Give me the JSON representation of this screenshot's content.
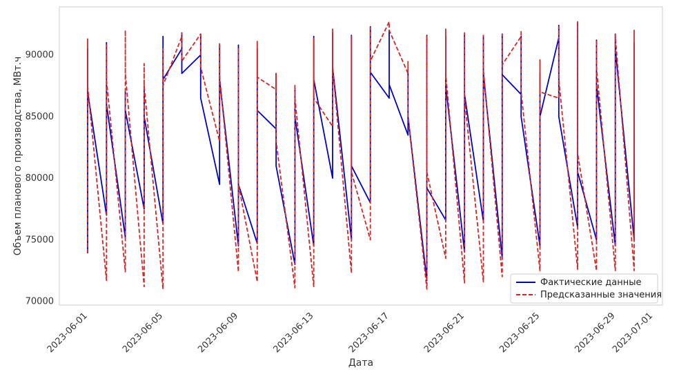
{
  "chart_data": {
    "type": "line",
    "title": "",
    "xlabel": "Дата",
    "ylabel": "Объем планового производства, МВт.ч",
    "x_ticks": [
      "2023-06-01",
      "2023-06-05",
      "2023-06-09",
      "2023-06-13",
      "2023-06-17",
      "2023-06-21",
      "2023-06-25",
      "2023-06-29",
      "2023-07-01"
    ],
    "y_ticks": [
      70000,
      75000,
      80000,
      85000,
      90000
    ],
    "xlim": [
      "2023-05-30T12:00",
      "2023-07-01T12:00"
    ],
    "ylim": [
      69700,
      93900
    ],
    "grid": false,
    "legend_position": "bottom-right",
    "series": [
      {
        "name": "Фактические данные",
        "color": "#0000cc",
        "style": "solid",
        "points": [
          [
            "2023-06-01T00:00",
            73900
          ],
          [
            "2023-06-01T00:00",
            90500
          ],
          [
            "2023-06-01T00:00",
            87000
          ],
          [
            "2023-06-02T00:00",
            77000
          ],
          [
            "2023-06-02T00:00",
            91000
          ],
          [
            "2023-06-02T00:00",
            86000
          ],
          [
            "2023-06-03T00:00",
            75200
          ],
          [
            "2023-06-03T00:00",
            87000
          ],
          [
            "2023-06-03T00:00",
            85500
          ],
          [
            "2023-06-04T00:00",
            77500
          ],
          [
            "2023-06-04T00:00",
            87500
          ],
          [
            "2023-06-04T00:00",
            85000
          ],
          [
            "2023-06-05T00:00",
            76300
          ],
          [
            "2023-06-05T00:00",
            91500
          ],
          [
            "2023-06-05T00:00",
            88000
          ],
          [
            "2023-06-06T00:00",
            90500
          ],
          [
            "2023-06-06T00:00",
            91800
          ],
          [
            "2023-06-06T00:00",
            88500
          ],
          [
            "2023-06-07T00:00",
            90000
          ],
          [
            "2023-06-07T00:00",
            91700
          ],
          [
            "2023-06-07T00:00",
            86500
          ],
          [
            "2023-06-08T00:00",
            79500
          ],
          [
            "2023-06-08T00:00",
            90800
          ],
          [
            "2023-06-08T00:00",
            88000
          ],
          [
            "2023-06-09T00:00",
            74500
          ],
          [
            "2023-06-09T00:00",
            90800
          ],
          [
            "2023-06-09T00:00",
            79500
          ],
          [
            "2023-06-10T00:00",
            74700
          ],
          [
            "2023-06-10T00:00",
            90500
          ],
          [
            "2023-06-10T00:00",
            85500
          ],
          [
            "2023-06-11T00:00",
            84000
          ],
          [
            "2023-06-11T00:00",
            88500
          ],
          [
            "2023-06-11T00:00",
            81000
          ],
          [
            "2023-06-12T00:00",
            73000
          ],
          [
            "2023-06-12T00:00",
            87300
          ],
          [
            "2023-06-12T00:00",
            85000
          ],
          [
            "2023-06-13T00:00",
            74500
          ],
          [
            "2023-06-13T00:00",
            91500
          ],
          [
            "2023-06-13T00:00",
            88000
          ],
          [
            "2023-06-14T00:00",
            80000
          ],
          [
            "2023-06-14T00:00",
            91800
          ],
          [
            "2023-06-14T00:00",
            89000
          ],
          [
            "2023-06-15T00:00",
            75000
          ],
          [
            "2023-06-15T00:00",
            91600
          ],
          [
            "2023-06-15T00:00",
            81000
          ],
          [
            "2023-06-16T00:00",
            78000
          ],
          [
            "2023-06-16T00:00",
            92300
          ],
          [
            "2023-06-16T00:00",
            88600
          ],
          [
            "2023-06-17T00:00",
            86500
          ],
          [
            "2023-06-17T00:00",
            92000
          ],
          [
            "2023-06-17T00:00",
            87600
          ],
          [
            "2023-06-18T00:00",
            83500
          ],
          [
            "2023-06-18T00:00",
            88500
          ],
          [
            "2023-06-18T00:00",
            85000
          ],
          [
            "2023-06-19T00:00",
            71700
          ],
          [
            "2023-06-19T00:00",
            91600
          ],
          [
            "2023-06-19T00:00",
            79200
          ],
          [
            "2023-06-20T00:00",
            76600
          ],
          [
            "2023-06-20T00:00",
            91500
          ],
          [
            "2023-06-20T00:00",
            87500
          ],
          [
            "2023-06-21T00:00",
            74000
          ],
          [
            "2023-06-21T00:00",
            91700
          ],
          [
            "2023-06-21T00:00",
            86800
          ],
          [
            "2023-06-22T00:00",
            76500
          ],
          [
            "2023-06-22T00:00",
            91500
          ],
          [
            "2023-06-22T00:00",
            88500
          ],
          [
            "2023-06-23T00:00",
            73500
          ],
          [
            "2023-06-23T00:00",
            91700
          ],
          [
            "2023-06-23T00:00",
            88400
          ],
          [
            "2023-06-24T00:00",
            86800
          ],
          [
            "2023-06-24T00:00",
            91500
          ],
          [
            "2023-06-24T00:00",
            85000
          ],
          [
            "2023-06-25T00:00",
            74500
          ],
          [
            "2023-06-25T00:00",
            88500
          ],
          [
            "2023-06-25T00:00",
            85000
          ],
          [
            "2023-06-26T00:00",
            91400
          ],
          [
            "2023-06-26T00:00",
            92400
          ],
          [
            "2023-06-26T00:00",
            85000
          ],
          [
            "2023-06-27T00:00",
            76000
          ],
          [
            "2023-06-27T00:00",
            92600
          ],
          [
            "2023-06-27T00:00",
            80500
          ],
          [
            "2023-06-28T00:00",
            75000
          ],
          [
            "2023-06-28T00:00",
            91200
          ],
          [
            "2023-06-28T00:00",
            87600
          ],
          [
            "2023-06-29T00:00",
            74500
          ],
          [
            "2023-06-29T00:00",
            91700
          ],
          [
            "2023-06-29T00:00",
            90500
          ],
          [
            "2023-06-30T00:00",
            75000
          ],
          [
            "2023-06-30T00:00",
            91000
          ],
          [
            "2023-06-30T00:00",
            91000
          ]
        ]
      },
      {
        "name": "Предсказанные значения",
        "color": "#dd2222",
        "style": "dashed",
        "points": [
          [
            "2023-06-01T00:00",
            73900
          ],
          [
            "2023-06-01T00:00",
            91300
          ],
          [
            "2023-06-01T00:00",
            87500
          ],
          [
            "2023-06-02T00:00",
            71700
          ],
          [
            "2023-06-02T00:00",
            90800
          ],
          [
            "2023-06-02T00:00",
            88000
          ],
          [
            "2023-06-03T00:00",
            72400
          ],
          [
            "2023-06-03T00:00",
            92000
          ],
          [
            "2023-06-03T00:00",
            88500
          ],
          [
            "2023-06-04T00:00",
            71200
          ],
          [
            "2023-06-04T00:00",
            89300
          ],
          [
            "2023-06-04T00:00",
            87500
          ],
          [
            "2023-06-05T00:00",
            71000
          ],
          [
            "2023-06-05T00:00",
            90500
          ],
          [
            "2023-06-05T00:00",
            87500
          ],
          [
            "2023-06-06T00:00",
            91500
          ],
          [
            "2023-06-06T00:00",
            91800
          ],
          [
            "2023-06-06T00:00",
            89500
          ],
          [
            "2023-06-07T00:00",
            91700
          ],
          [
            "2023-06-07T00:00",
            91500
          ],
          [
            "2023-06-07T00:00",
            89000
          ],
          [
            "2023-06-08T00:00",
            83000
          ],
          [
            "2023-06-08T00:00",
            91000
          ],
          [
            "2023-06-08T00:00",
            88300
          ],
          [
            "2023-06-09T00:00",
            72400
          ],
          [
            "2023-06-09T00:00",
            90600
          ],
          [
            "2023-06-09T00:00",
            79500
          ],
          [
            "2023-06-10T00:00",
            71600
          ],
          [
            "2023-06-10T00:00",
            91100
          ],
          [
            "2023-06-10T00:00",
            88200
          ],
          [
            "2023-06-11T00:00",
            87200
          ],
          [
            "2023-06-11T00:00",
            88500
          ],
          [
            "2023-06-11T00:00",
            83000
          ],
          [
            "2023-06-12T00:00",
            71100
          ],
          [
            "2023-06-12T00:00",
            87600
          ],
          [
            "2023-06-12T00:00",
            86500
          ],
          [
            "2023-06-13T00:00",
            71200
          ],
          [
            "2023-06-13T00:00",
            91400
          ],
          [
            "2023-06-13T00:00",
            86500
          ],
          [
            "2023-06-14T00:00",
            84200
          ],
          [
            "2023-06-14T00:00",
            92100
          ],
          [
            "2023-06-14T00:00",
            89000
          ],
          [
            "2023-06-15T00:00",
            72300
          ],
          [
            "2023-06-15T00:00",
            91500
          ],
          [
            "2023-06-15T00:00",
            80500
          ],
          [
            "2023-06-16T00:00",
            75000
          ],
          [
            "2023-06-16T00:00",
            92200
          ],
          [
            "2023-06-16T00:00",
            89500
          ],
          [
            "2023-06-17T00:00",
            92700
          ],
          [
            "2023-06-17T00:00",
            92700
          ],
          [
            "2023-06-17T00:00",
            92000
          ],
          [
            "2023-06-18T00:00",
            88500
          ],
          [
            "2023-06-18T00:00",
            89500
          ],
          [
            "2023-06-18T00:00",
            85000
          ],
          [
            "2023-06-19T00:00",
            71000
          ],
          [
            "2023-06-19T00:00",
            91500
          ],
          [
            "2023-06-19T00:00",
            80500
          ],
          [
            "2023-06-20T00:00",
            73500
          ],
          [
            "2023-06-20T00:00",
            92100
          ],
          [
            "2023-06-20T00:00",
            88500
          ],
          [
            "2023-06-21T00:00",
            71500
          ],
          [
            "2023-06-21T00:00",
            91800
          ],
          [
            "2023-06-21T00:00",
            86500
          ],
          [
            "2023-06-22T00:00",
            71600
          ],
          [
            "2023-06-22T00:00",
            91600
          ],
          [
            "2023-06-22T00:00",
            88800
          ],
          [
            "2023-06-23T00:00",
            72000
          ],
          [
            "2023-06-23T00:00",
            91700
          ],
          [
            "2023-06-23T00:00",
            89200
          ],
          [
            "2023-06-24T00:00",
            91500
          ],
          [
            "2023-06-24T00:00",
            92000
          ],
          [
            "2023-06-24T00:00",
            87000
          ],
          [
            "2023-06-25T00:00",
            72500
          ],
          [
            "2023-06-25T00:00",
            89600
          ],
          [
            "2023-06-25T00:00",
            87000
          ],
          [
            "2023-06-26T00:00",
            86500
          ],
          [
            "2023-06-26T00:00",
            92300
          ],
          [
            "2023-06-26T00:00",
            88000
          ],
          [
            "2023-06-27T00:00",
            72600
          ],
          [
            "2023-06-27T00:00",
            92700
          ],
          [
            "2023-06-27T00:00",
            82000
          ],
          [
            "2023-06-28T00:00",
            72500
          ],
          [
            "2023-06-28T00:00",
            91200
          ],
          [
            "2023-06-28T00:00",
            89000
          ],
          [
            "2023-06-29T00:00",
            72500
          ],
          [
            "2023-06-29T00:00",
            91700
          ],
          [
            "2023-06-29T00:00",
            91500
          ],
          [
            "2023-06-30T00:00",
            72500
          ],
          [
            "2023-06-30T00:00",
            92000
          ],
          [
            "2023-06-30T00:00",
            75000
          ]
        ]
      }
    ]
  }
}
